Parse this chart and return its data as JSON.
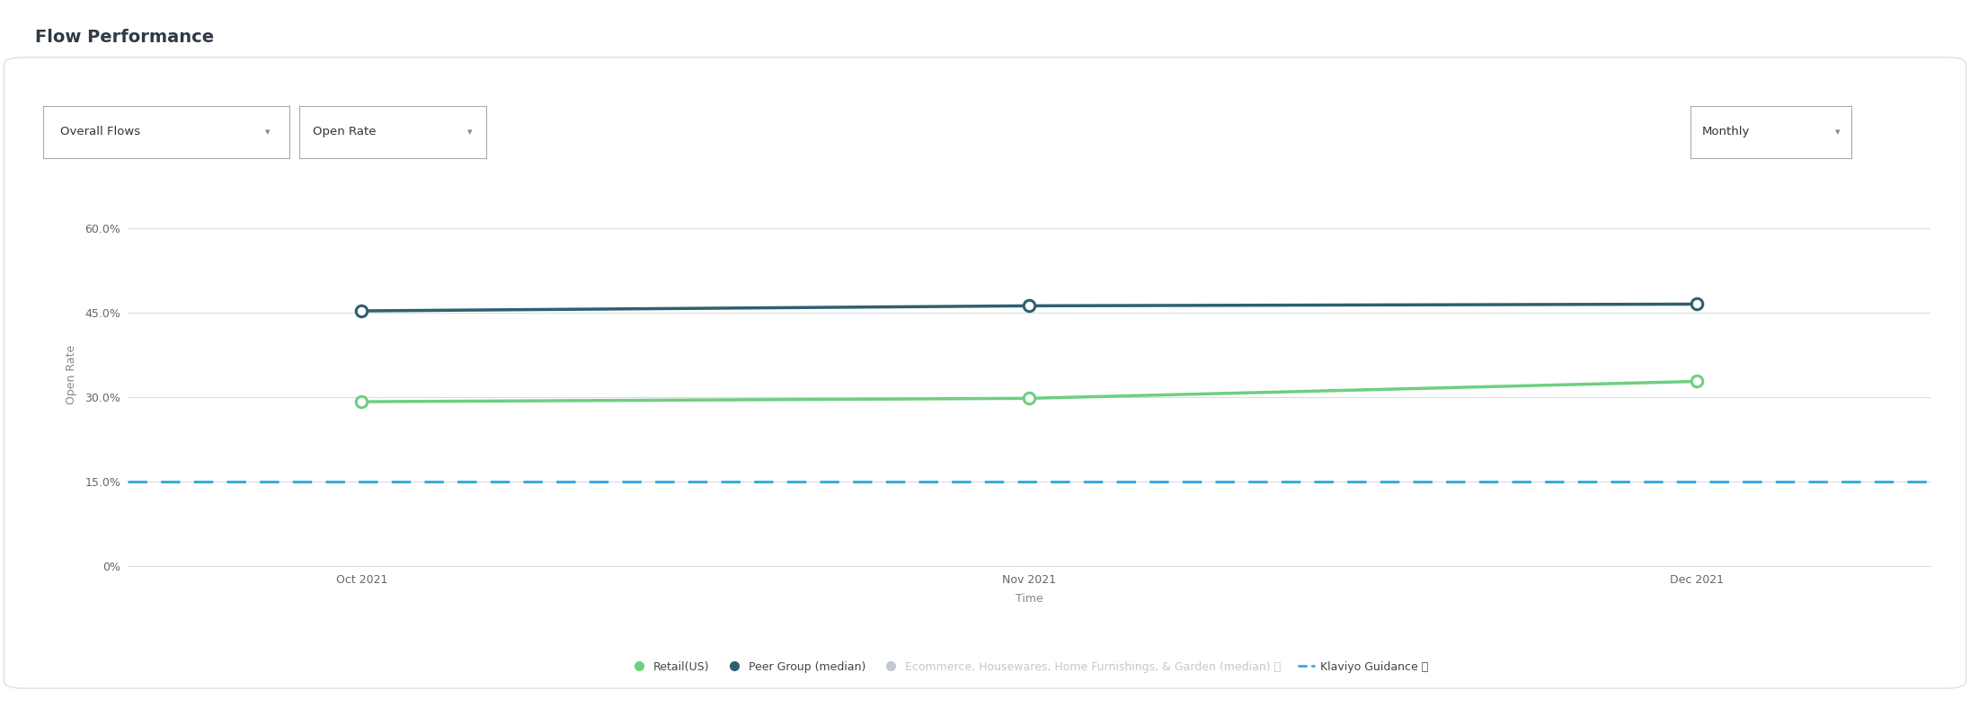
{
  "title": "Flow Performance",
  "xlabel": "Time",
  "ylabel": "Open Rate",
  "x_labels": [
    "Oct 2021",
    "Nov 2021",
    "Dec 2021"
  ],
  "x_values": [
    0,
    1,
    2
  ],
  "retail_us": [
    0.292,
    0.298,
    0.328
  ],
  "peer_group": [
    0.453,
    0.462,
    0.465
  ],
  "klaviyo_guidance": 0.15,
  "ecommerce_color": "#c0c8d0",
  "retail_color": "#6dcf81",
  "peer_color": "#2d6070",
  "klaviyo_color": "#3aabdc",
  "y_ticks": [
    0.0,
    0.15,
    0.3,
    0.45,
    0.6
  ],
  "y_tick_labels": [
    "0%",
    "15.0%",
    "30.0%",
    "45.0%",
    "60.0%"
  ],
  "ylim": [
    0,
    0.68
  ],
  "background_color": "#ffffff",
  "plot_bg_color": "#ffffff",
  "grid_color": "#d8dde2",
  "title_fontsize": 14,
  "axis_label_fontsize": 9,
  "tick_fontsize": 9,
  "legend_fontsize": 9,
  "dropdowns": [
    "Overall Flows",
    "Open Rate",
    "Monthly"
  ],
  "figsize": [
    21.92,
    7.98
  ],
  "dpi": 100
}
